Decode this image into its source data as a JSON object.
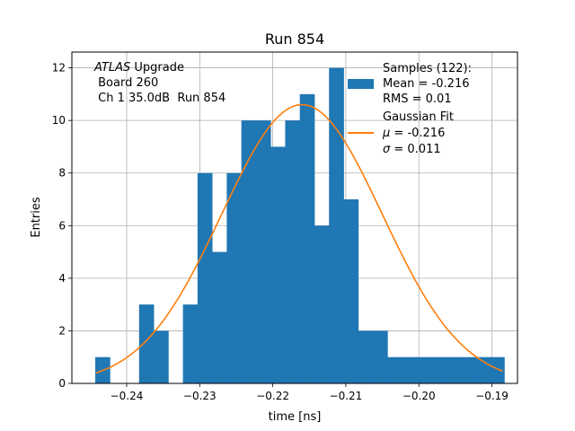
{
  "chart_data": {
    "type": "bar",
    "title": "Run 854",
    "xlabel": "time [ns]",
    "ylabel": "Entries",
    "xlim": [
      -0.2475,
      -0.1865
    ],
    "ylim": [
      0,
      12.6
    ],
    "xticks": [
      -0.24,
      -0.23,
      -0.22,
      -0.21,
      -0.2,
      -0.19
    ],
    "xtick_labels": [
      "−0.24",
      "−0.23",
      "−0.22",
      "−0.21",
      "−0.20",
      "−0.19"
    ],
    "yticks": [
      0,
      2,
      4,
      6,
      8,
      10,
      12
    ],
    "ytick_labels": [
      "0",
      "2",
      "4",
      "6",
      "8",
      "10",
      "12"
    ],
    "grid": true,
    "bar_color": "#1f77b4",
    "fit_color": "#ff7f0e",
    "bins": {
      "start": -0.2443,
      "width": 0.002,
      "counts": [
        1,
        0,
        0,
        3,
        2,
        0,
        3,
        8,
        5,
        8,
        10,
        10,
        9,
        10,
        11,
        6,
        12,
        7,
        2,
        2,
        1,
        1,
        1,
        1,
        1,
        1,
        1,
        1
      ]
    },
    "fit": {
      "mu": -0.216,
      "sigma": 0.011,
      "amplitude": 10.6,
      "x_range": [
        -0.2442,
        -0.1885
      ]
    },
    "annotation": {
      "line1_italic": "ATLAS",
      "line1_rest": " Upgrade",
      "line2": " Board 260",
      "line3": " Ch 1 35.0dB  Run 854"
    },
    "legend": {
      "placement": "top-right",
      "samples_entry": [
        "Samples (122):",
        "Mean = -0.216",
        "RMS = 0.01"
      ],
      "fit_entry_title": "Gaussian Fit",
      "fit_mu_symbol": "μ",
      "fit_mu_value": " = -0.216",
      "fit_sigma_symbol": "σ",
      "fit_sigma_value": " = 0.011"
    }
  }
}
